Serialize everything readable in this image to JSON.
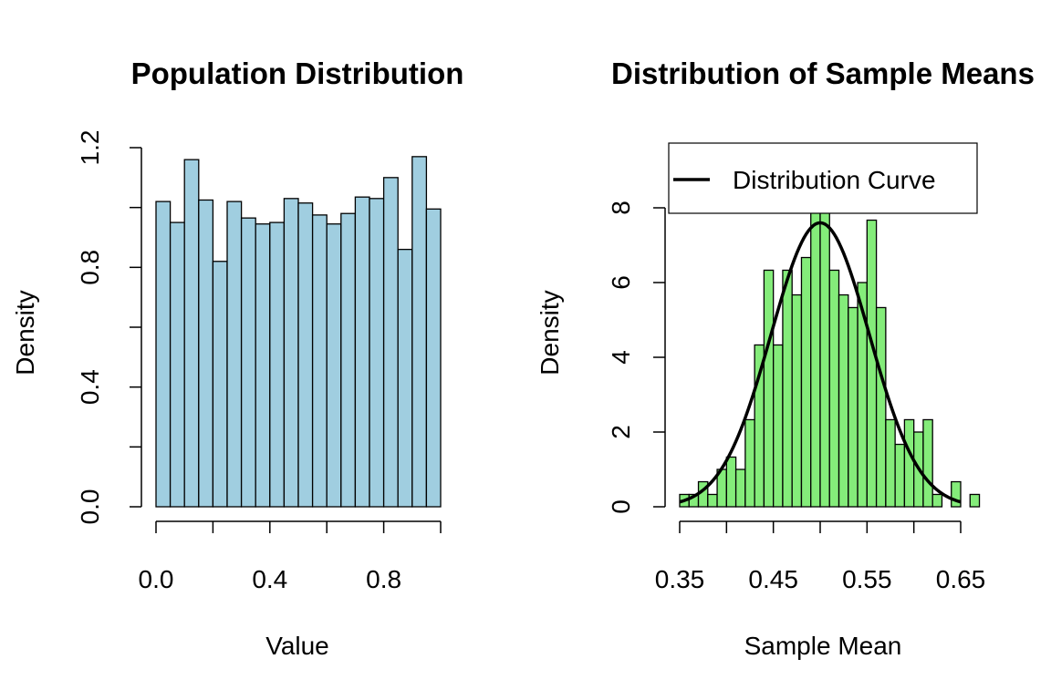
{
  "chart_data": [
    {
      "type": "bar",
      "title": "Population Distribution",
      "xlabel": "Value",
      "ylabel": "Density",
      "xlim": [
        0,
        1
      ],
      "ylim": [
        0,
        1.2
      ],
      "bin_width": 0.05,
      "bin_start": 0,
      "fill": "#a0cee0",
      "x_ticks": [
        "0.0",
        "0.4",
        "0.8"
      ],
      "y_ticks": [
        "0.0",
        "0.4",
        "0.8",
        "1.2"
      ],
      "values": [
        1.02,
        0.95,
        1.16,
        1.025,
        0.82,
        1.02,
        0.965,
        0.945,
        0.95,
        1.03,
        1.015,
        0.975,
        0.945,
        0.98,
        1.035,
        1.03,
        1.1,
        0.86,
        1.17,
        0.995
      ]
    },
    {
      "type": "bar",
      "title": "Distribution of Sample Means",
      "xlabel": "Sample Mean",
      "ylabel": "Density",
      "xlim": [
        0.35,
        0.65
      ],
      "ylim": [
        0,
        8
      ],
      "bin_width": 0.01,
      "bin_start": 0.35,
      "fill": "#84ec7a",
      "x_ticks": [
        "0.35",
        "0.45",
        "0.55",
        "0.65"
      ],
      "y_ticks": [
        "0",
        "2",
        "4",
        "6",
        "8"
      ],
      "values": [
        0.33,
        0.33,
        0.67,
        0.33,
        1.0,
        1.33,
        1.0,
        2.33,
        4.33,
        6.33,
        4.33,
        6.33,
        5.67,
        6.67,
        7.87,
        7.87,
        6.33,
        5.67,
        5.33,
        6.0,
        7.67,
        5.33,
        2.33,
        1.67,
        2.33,
        2.0,
        2.33,
        0.33,
        0.0,
        0.67,
        0.0,
        0.33
      ],
      "curve": {
        "type": "normal",
        "mean": 0.5,
        "sd": 0.0525,
        "color": "#000000"
      },
      "legend": {
        "position": "top-right",
        "entries": [
          "Distribution Curve"
        ]
      }
    }
  ]
}
